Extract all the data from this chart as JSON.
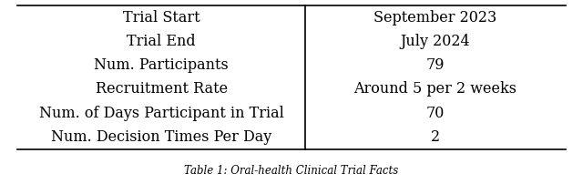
{
  "rows": [
    [
      "Trial Start",
      "September 2023"
    ],
    [
      "Trial End",
      "July 2024"
    ],
    [
      "Num. Participants",
      "79"
    ],
    [
      "Recruitment Rate",
      "Around 5 per 2 weeks"
    ],
    [
      "Num. of Days Participant in Trial",
      "70"
    ],
    [
      "Num. Decision Times Per Day",
      "2"
    ]
  ],
  "col_split": 0.525,
  "font_size": 11.5,
  "background_color": "#ffffff",
  "line_color": "#000000",
  "text_color": "#000000",
  "caption": "Table 1: Oral-health Clinical Trial Facts",
  "caption_fontsize": 8.5
}
